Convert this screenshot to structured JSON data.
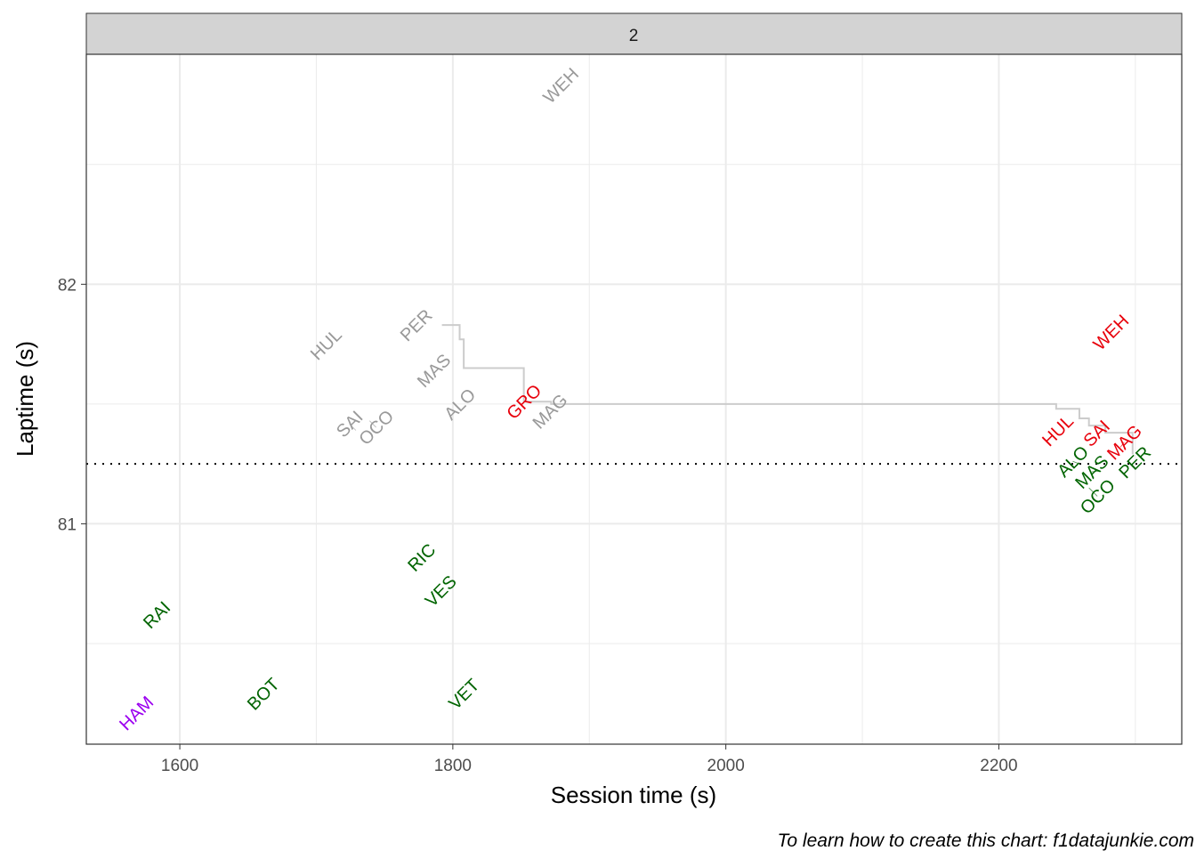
{
  "chart_data": {
    "type": "scatter",
    "facet_label": "2",
    "xlabel": "Session time (s)",
    "ylabel": "Laptime (s)",
    "xlim": [
      1531.5,
      2334
    ],
    "ylim": [
      80.08,
      82.96
    ],
    "x_ticks": [
      1600,
      1800,
      2000,
      2200
    ],
    "y_ticks": [
      81,
      82
    ],
    "grid": true,
    "reference_line_y": 81.25,
    "colors": {
      "grey": "#999999",
      "red": "#E8000B",
      "green": "#006400",
      "purple": "#9B00F0",
      "step": "#cccccc"
    },
    "points": [
      {
        "label": "WEH",
        "x": 1879,
        "y": 82.83,
        "color": "grey"
      },
      {
        "label": "HUL",
        "x": 1707,
        "y": 81.75,
        "color": "grey"
      },
      {
        "label": "PER",
        "x": 1773,
        "y": 81.83,
        "color": "grey"
      },
      {
        "label": "MAS",
        "x": 1786,
        "y": 81.64,
        "color": "grey"
      },
      {
        "label": "ALO",
        "x": 1805,
        "y": 81.5,
        "color": "grey"
      },
      {
        "label": "SAI",
        "x": 1729,
        "y": 81.39,
        "color": "grey"
      },
      {
        "label": "OCO",
        "x": 1739,
        "y": 81.43,
        "color": "grey"
      },
      {
        "label": "MAG",
        "x": 1871,
        "y": 81.47,
        "color": "grey"
      },
      {
        "label": "GRO",
        "x": 1852,
        "y": 81.51,
        "color": "red"
      },
      {
        "label": "WEH",
        "x": 2282,
        "y": 81.8,
        "color": "red"
      },
      {
        "label": "HUL",
        "x": 2243,
        "y": 81.39,
        "color": "red"
      },
      {
        "label": "SAI",
        "x": 2270,
        "y": 81.37,
        "color": "red"
      },
      {
        "label": "MAG",
        "x": 2289,
        "y": 81.32,
        "color": "red"
      },
      {
        "label": "ALO",
        "x": 2259,
        "y": 81.25,
        "color": "green"
      },
      {
        "label": "OCO",
        "x": 2266,
        "y": 81.15,
        "color": "green"
      },
      {
        "label": "MAS",
        "x": 2274,
        "y": 81.22,
        "color": "green"
      },
      {
        "label": "PER",
        "x": 2299,
        "y": 81.26,
        "color": "green"
      },
      {
        "label": "RIC",
        "x": 1777,
        "y": 80.86,
        "color": "green"
      },
      {
        "label": "VES",
        "x": 1791,
        "y": 80.72,
        "color": "green"
      },
      {
        "label": "RAI",
        "x": 1583,
        "y": 80.62,
        "color": "green"
      },
      {
        "label": "BOT",
        "x": 1661,
        "y": 80.29,
        "color": "green"
      },
      {
        "label": "VET",
        "x": 1808,
        "y": 80.29,
        "color": "green"
      },
      {
        "label": "HAM",
        "x": 1568,
        "y": 80.21,
        "color": "purple"
      }
    ],
    "step_line": [
      [
        1792,
        81.83
      ],
      [
        1805,
        81.77
      ],
      [
        1808,
        81.65
      ],
      [
        1852,
        81.51
      ],
      [
        1872,
        81.5
      ],
      [
        2242,
        81.48
      ],
      [
        2259,
        81.44
      ],
      [
        2266,
        81.41
      ],
      [
        2278,
        81.38
      ],
      [
        2298,
        81.29
      ]
    ]
  },
  "caption": "To learn how to create this chart: f1datajunkie.com"
}
